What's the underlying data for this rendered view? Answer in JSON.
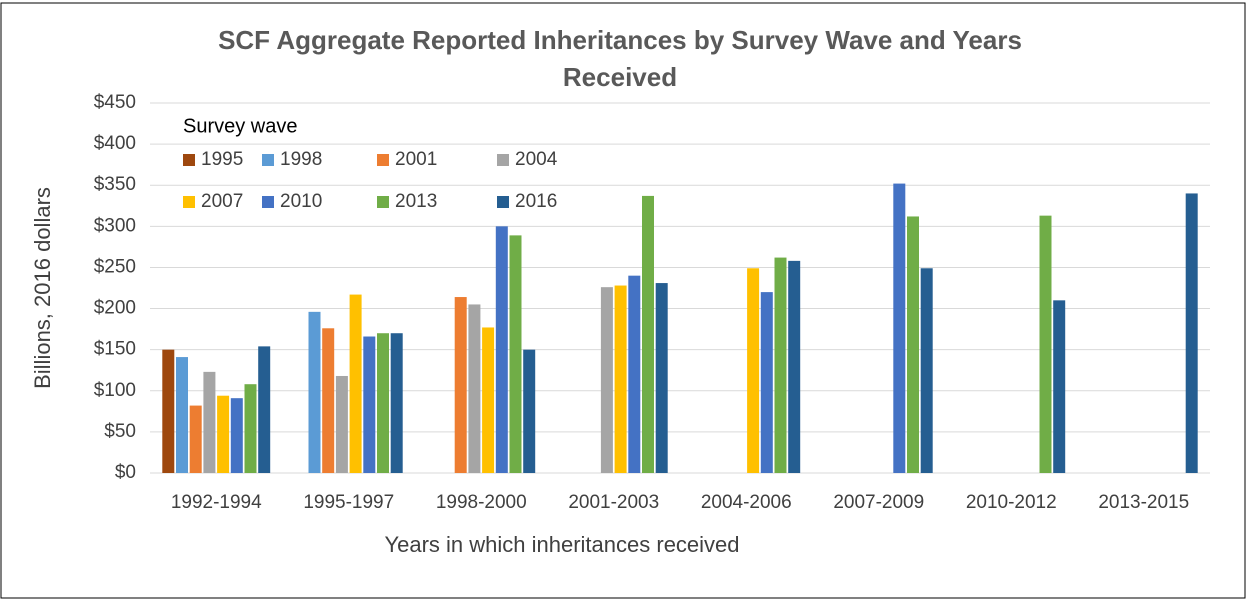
{
  "chart_data": {
    "type": "bar",
    "title": "SCF Aggregate Reported Inheritances by Survey Wave and Years Received",
    "x_label": "Years in which inheritances received",
    "y_label": "Billions, 2016 dollars",
    "legend_title": "Survey wave",
    "categories": [
      "1992-1994",
      "1995-1997",
      "1998-2000",
      "2001-2003",
      "2004-2006",
      "2007-2009",
      "2010-2012",
      "2013-2015"
    ],
    "series": [
      {
        "name": "1995",
        "color": "#9e480e",
        "values": [
          150,
          null,
          null,
          null,
          null,
          null,
          null,
          null
        ]
      },
      {
        "name": "1998",
        "color": "#5b9bd5",
        "values": [
          141,
          196,
          null,
          null,
          null,
          null,
          null,
          null
        ]
      },
      {
        "name": "2001",
        "color": "#ed7d31",
        "values": [
          82,
          176,
          214,
          null,
          null,
          null,
          null,
          null
        ]
      },
      {
        "name": "2004",
        "color": "#a5a5a5",
        "values": [
          123,
          118,
          205,
          226,
          null,
          null,
          null,
          null
        ]
      },
      {
        "name": "2007",
        "color": "#ffc000",
        "values": [
          94,
          217,
          177,
          228,
          249,
          null,
          null,
          null
        ]
      },
      {
        "name": "2010",
        "color": "#4472c4",
        "values": [
          91,
          166,
          300,
          240,
          220,
          352,
          null,
          null
        ]
      },
      {
        "name": "2013",
        "color": "#70ad47",
        "values": [
          108,
          170,
          289,
          337,
          262,
          312,
          313,
          null
        ]
      },
      {
        "name": "2016",
        "color": "#255e91",
        "values": [
          154,
          170,
          150,
          231,
          258,
          249,
          210,
          340
        ]
      }
    ],
    "ylim": [
      0,
      450
    ],
    "yticks": [
      {
        "value": 0,
        "label": "$0"
      },
      {
        "value": 50,
        "label": "$50"
      },
      {
        "value": 100,
        "label": "$100"
      },
      {
        "value": 150,
        "label": "$150"
      },
      {
        "value": 200,
        "label": "$200"
      },
      {
        "value": 250,
        "label": "$250"
      },
      {
        "value": 300,
        "label": "$300"
      },
      {
        "value": 350,
        "label": "$350"
      },
      {
        "value": 400,
        "label": "$400"
      },
      {
        "value": 450,
        "label": "$450"
      }
    ],
    "grid": true
  }
}
